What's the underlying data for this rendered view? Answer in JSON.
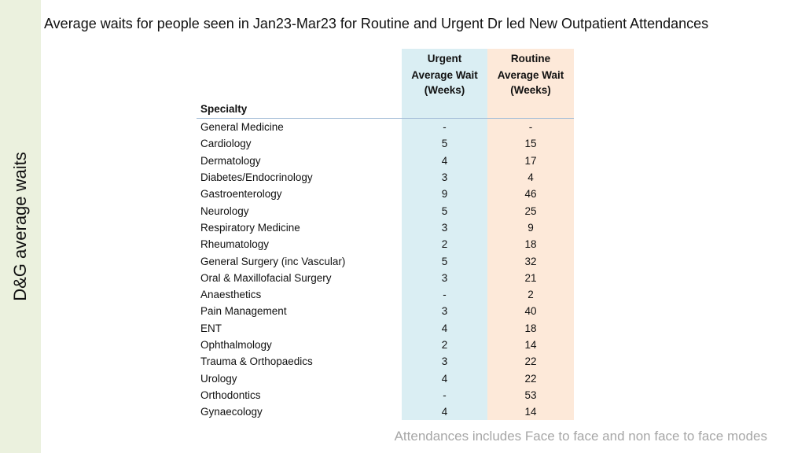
{
  "side_title": "D&G average waits",
  "title": "Average waits for people seen in Jan23-Mar23 for Routine and Urgent Dr led New Outpatient Attendances",
  "table": {
    "group_headers": {
      "urgent": "Urgent",
      "routine": "Routine"
    },
    "column_headers": {
      "specialty": "Specialty",
      "urgent_wait": "Average Wait (Weeks)",
      "routine_wait": "Average Wait (Weeks)"
    },
    "rows": [
      {
        "specialty": "General Medicine",
        "urgent": "-",
        "routine": "-"
      },
      {
        "specialty": "Cardiology",
        "urgent": "5",
        "routine": "15"
      },
      {
        "specialty": "Dermatology",
        "urgent": "4",
        "routine": "17"
      },
      {
        "specialty": "Diabetes/Endocrinology",
        "urgent": "3",
        "routine": "4"
      },
      {
        "specialty": "Gastroenterology",
        "urgent": "9",
        "routine": "46"
      },
      {
        "specialty": "Neurology",
        "urgent": "5",
        "routine": "25"
      },
      {
        "specialty": "Respiratory Medicine",
        "urgent": "3",
        "routine": "9"
      },
      {
        "specialty": "Rheumatology",
        "urgent": "2",
        "routine": "18"
      },
      {
        "specialty": "General Surgery (inc Vascular)",
        "urgent": "5",
        "routine": "32"
      },
      {
        "specialty": "Oral & Maxillofacial Surgery",
        "urgent": "3",
        "routine": "21"
      },
      {
        "specialty": "Anaesthetics",
        "urgent": "-",
        "routine": "2"
      },
      {
        "specialty": "Pain Management",
        "urgent": "3",
        "routine": "40"
      },
      {
        "specialty": "ENT",
        "urgent": "4",
        "routine": "18"
      },
      {
        "specialty": "Ophthalmology",
        "urgent": "2",
        "routine": "14"
      },
      {
        "specialty": "Trauma & Orthopaedics",
        "urgent": "3",
        "routine": "22"
      },
      {
        "specialty": "Urology",
        "urgent": "4",
        "routine": "22"
      },
      {
        "specialty": "Orthodontics",
        "urgent": "-",
        "routine": "53"
      },
      {
        "specialty": "Gynaecology",
        "urgent": "4",
        "routine": "14"
      }
    ]
  },
  "footnote": "Attendances includes Face to face and non face to face modes",
  "colors": {
    "side_band": "#ebf1de",
    "urgent_column": "#daeef3",
    "routine_column": "#fde9d9",
    "footnote_text": "#a6a6a6"
  }
}
